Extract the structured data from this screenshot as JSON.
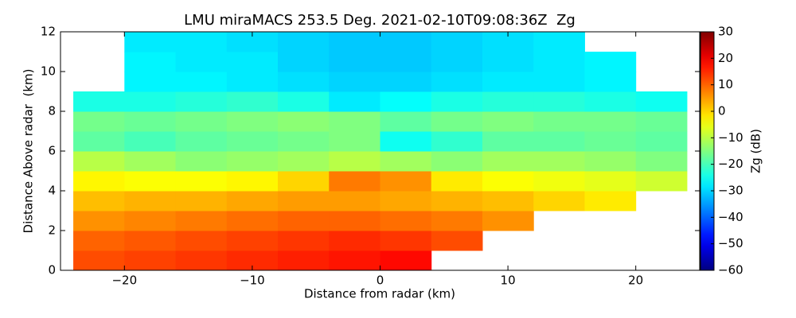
{
  "chart_data": {
    "type": "heatmap",
    "title": "LMU miraMACS 253.5 Deg. 2021-02-10T09:08:36Z  Zg",
    "xlabel": "Distance from radar (km)",
    "ylabel": "Distance Above radar  (km)",
    "xlim": [
      -25,
      25
    ],
    "ylim": [
      0,
      12
    ],
    "xticks": [
      {
        "value": -20,
        "label": "−20"
      },
      {
        "value": -10,
        "label": "−10"
      },
      0,
      10,
      20
    ],
    "yticks": [
      0,
      2,
      4,
      6,
      8,
      10,
      12
    ],
    "x_edges": [
      -24,
      -20,
      -16,
      -12,
      -8,
      -4,
      0,
      4,
      8,
      12,
      16,
      20,
      24
    ],
    "y_edges": [
      0,
      1,
      2,
      3,
      4,
      5,
      6,
      7,
      8,
      9,
      10,
      11,
      12
    ],
    "z": [
      [
        12,
        13,
        14,
        15,
        16,
        17,
        18,
        null,
        null,
        null,
        null,
        null
      ],
      [
        10,
        11,
        12,
        13,
        14,
        15,
        14,
        12,
        null,
        null,
        null,
        null
      ],
      [
        6,
        7,
        8,
        9,
        10,
        10,
        9,
        8,
        6,
        null,
        null,
        null
      ],
      [
        2,
        3,
        3,
        4,
        5,
        5,
        4,
        3,
        2,
        0,
        -2,
        null
      ],
      [
        -3,
        -4,
        -4,
        -3,
        0,
        8,
        6,
        -2,
        -4,
        -5,
        -6,
        -8
      ],
      [
        -10,
        -12,
        -14,
        -13,
        -12,
        -10,
        -12,
        -14,
        -12,
        -12,
        -13,
        -15
      ],
      [
        -18,
        -20,
        -18,
        -17,
        -16,
        -15,
        -25,
        -22,
        -18,
        -18,
        -17,
        -18
      ],
      [
        -16,
        -17,
        -16,
        -15,
        -14,
        -15,
        -18,
        -16,
        -15,
        -16,
        -16,
        -17
      ],
      [
        -24,
        -24,
        -23,
        -22,
        -24,
        -28,
        -26,
        -24,
        -23,
        -23,
        -24,
        -25
      ],
      [
        null,
        -27,
        -27,
        -28,
        -29,
        -30,
        -30,
        -29,
        -28,
        -28,
        -27,
        null
      ],
      [
        null,
        -27,
        -28,
        -28,
        -30,
        -31,
        -31,
        -30,
        -29,
        -28,
        -27,
        null
      ],
      [
        null,
        -28,
        -28,
        -29,
        -30,
        -31,
        -31,
        -30,
        -29,
        -28,
        null,
        null
      ]
    ],
    "colormap": "jet",
    "colorbar": {
      "label": "Zg (dB)",
      "lim": [
        -60,
        30
      ],
      "ticks": [
        {
          "value": -60,
          "label": "−60"
        },
        {
          "value": -50,
          "label": "−50"
        },
        {
          "value": -40,
          "label": "−40"
        },
        {
          "value": -30,
          "label": "−30"
        },
        {
          "value": -20,
          "label": "−20"
        },
        {
          "value": -10,
          "label": "−10"
        },
        0,
        10,
        20,
        30
      ]
    }
  }
}
